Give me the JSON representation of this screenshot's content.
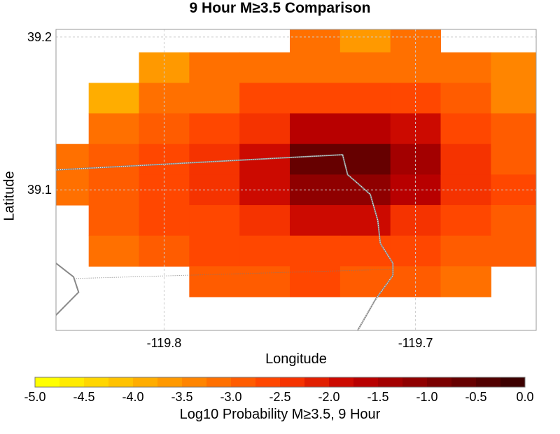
{
  "chart_data": {
    "type": "heatmap",
    "title": "9 Hour M≥3.5 Comparison",
    "xlabel": "Longitude",
    "ylabel": "Latitude",
    "xlim": [
      -119.843,
      -119.652
    ],
    "ylim": [
      39.008,
      39.205
    ],
    "x_ticks": [
      {
        "value": -119.8,
        "label": "-119.8"
      },
      {
        "value": -119.7,
        "label": "-119.7"
      }
    ],
    "y_ticks": [
      {
        "value": 39.1,
        "label": "39.1"
      },
      {
        "value": 39.2,
        "label": "39.2"
      }
    ],
    "grid": true,
    "cell_size": {
      "lon": 0.02,
      "lat": 0.02
    },
    "cells_note": "grid of cell centers; null = no value",
    "lon_centers": [
      -119.84,
      -119.82,
      -119.8,
      -119.78,
      -119.76,
      -119.74,
      -119.72,
      -119.7,
      -119.68,
      -119.66,
      -119.64,
      -119.62
    ],
    "lat_centers": [
      39.2,
      39.18,
      39.16,
      39.14,
      39.12,
      39.1,
      39.08,
      39.06,
      39.04,
      39.02
    ],
    "values": [
      [
        null,
        null,
        null,
        null,
        null,
        -3.2,
        -3.6,
        -3.2,
        null,
        null,
        null,
        null
      ],
      [
        null,
        null,
        -3.6,
        -3.1,
        -3.1,
        -3.1,
        -3.1,
        -3.1,
        -3.1,
        -3.5,
        null,
        null
      ],
      [
        null,
        -3.8,
        -3.2,
        -3.1,
        -2.6,
        -2.6,
        -2.6,
        -2.6,
        -2.8,
        -3.3,
        -3.2,
        null
      ],
      [
        null,
        -3.2,
        -2.9,
        -2.6,
        -2.3,
        -1.6,
        -1.6,
        -1.9,
        -2.6,
        -2.9,
        -3.0,
        -3.7
      ],
      [
        -3.1,
        -2.8,
        -2.6,
        -2.3,
        -1.8,
        -0.7,
        -0.7,
        -1.4,
        -2.3,
        -2.8,
        -3.0,
        -3.2
      ],
      [
        -3.1,
        -2.8,
        -2.6,
        -2.3,
        -1.8,
        -1.1,
        -1.1,
        -1.6,
        -2.3,
        -2.6,
        -3.0,
        -3.2
      ],
      [
        null,
        -2.8,
        -2.6,
        -2.6,
        -2.3,
        -2.0,
        -2.0,
        -2.3,
        -2.6,
        -2.8,
        -3.2,
        -3.7
      ],
      [
        null,
        -3.1,
        -2.8,
        -2.6,
        -2.6,
        -2.6,
        -2.6,
        -2.6,
        -2.8,
        -3.0,
        -3.3,
        null
      ],
      [
        null,
        null,
        null,
        -2.9,
        -2.9,
        -2.6,
        -2.8,
        -2.8,
        -3.1,
        null,
        null,
        null
      ],
      [
        null,
        null,
        null,
        null,
        null,
        null,
        null,
        null,
        null,
        null,
        null,
        null
      ]
    ],
    "colorbar": {
      "label": "Log10 Probability M≥3.5, 9 Hour",
      "min": -5.0,
      "max": 0.0,
      "step": 0.25,
      "tick_labels": [
        "-5.0",
        "-4.5",
        "-4.0",
        "-3.5",
        "-3.0",
        "-2.5",
        "-2.0",
        "-1.5",
        "-1.0",
        "-0.5",
        "0.0"
      ],
      "colors": [
        "#ffff00",
        "#ffeb00",
        "#ffd600",
        "#ffc200",
        "#ffad00",
        "#ff9900",
        "#ff8500",
        "#ff7000",
        "#ff5c00",
        "#ff4700",
        "#f53300",
        "#e11f00",
        "#cc0a00",
        "#b80000",
        "#a30000",
        "#8f0000",
        "#7a0000",
        "#660000",
        "#520000",
        "#3d0000"
      ]
    },
    "overlays": [
      {
        "name": "state-border",
        "points": [
          [
            -119.843,
            39.113
          ],
          [
            -119.729,
            39.123
          ],
          [
            -119.727,
            39.11
          ],
          [
            -119.718,
            39.097
          ],
          [
            -119.715,
            39.08
          ],
          [
            -119.714,
            39.065
          ],
          [
            -119.709,
            39.052
          ],
          [
            -119.709,
            39.044
          ],
          [
            -119.716,
            39.028
          ],
          [
            -119.723,
            39.008
          ]
        ]
      },
      {
        "name": "county-line",
        "points": [
          [
            -119.835,
            39.042
          ],
          [
            -119.709,
            39.048
          ]
        ]
      },
      {
        "name": "lake-shore",
        "points": [
          [
            -119.843,
            39.052
          ],
          [
            -119.836,
            39.043
          ],
          [
            -119.834,
            39.033
          ],
          [
            -119.843,
            39.018
          ]
        ]
      }
    ]
  }
}
